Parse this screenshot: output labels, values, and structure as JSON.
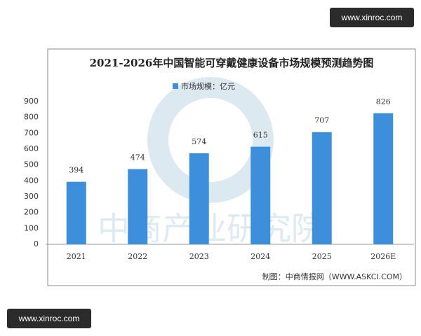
{
  "site_labels": [
    "www.xinroc.com",
    "www.xinroc.com"
  ],
  "chart_data": {
    "type": "bar",
    "title": "2021-2026年中国智能可穿戴健康设备市场规模预测趋势图",
    "categories": [
      "2021",
      "2022",
      "2023",
      "2024",
      "2025",
      "2026E"
    ],
    "series": [
      {
        "name": "市场规模：亿元",
        "color": "#3d8fdb",
        "values": [
          394,
          474,
          574,
          615,
          707,
          826
        ]
      }
    ],
    "ylim": [
      0,
      900
    ],
    "yticks": [
      0,
      100,
      200,
      300,
      400,
      500,
      600,
      700,
      800,
      900
    ],
    "grid": false,
    "source": "制图：中商情报网（WWW.ASKCI.COM）",
    "watermark": "中商产业研究院"
  }
}
